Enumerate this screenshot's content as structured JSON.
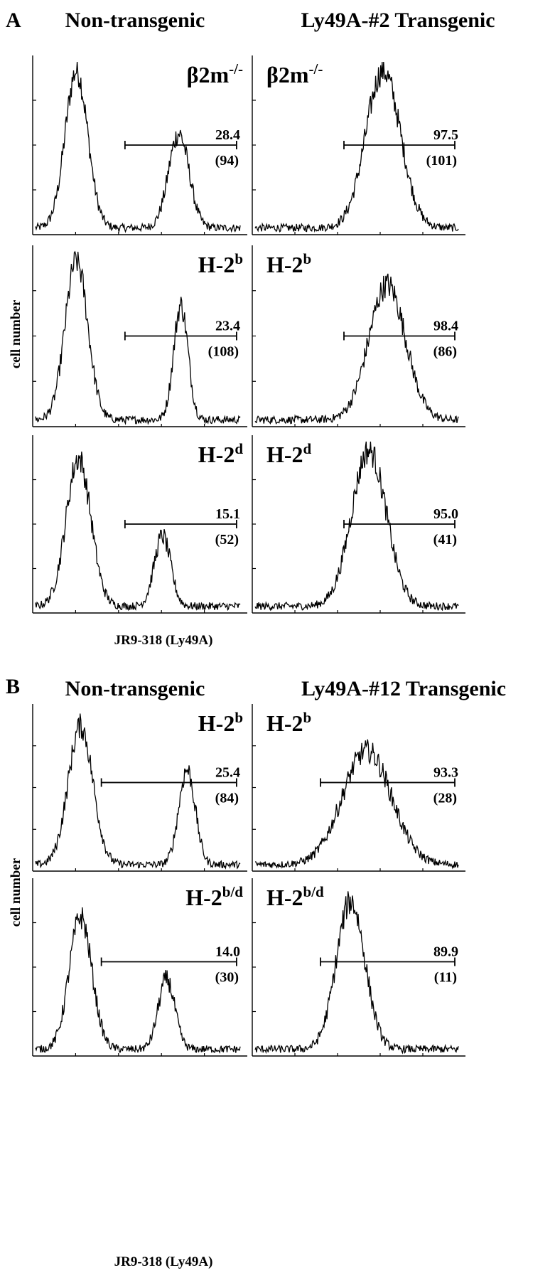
{
  "chart_data": {
    "type": "histogram",
    "ylabel": "cell number",
    "xlabel": "JR9-318 (Ly49A)",
    "panels": [
      {
        "letter": "A",
        "columns": [
          "Non-transgenic",
          "Ly49A-#2 Transgenic"
        ],
        "rows": [
          {
            "genotype_base": "β2m",
            "genotype_sup": "-/-",
            "plots": [
              {
                "percent": "28.4",
                "mfi": "(94)",
                "gate": [
                  0.43,
                  0.95
                ],
                "peaks": [
                  {
                    "center": 0.2,
                    "width": 0.055,
                    "height": 1.0
                  },
                  {
                    "center": 0.7,
                    "width": 0.05,
                    "height": 0.6
                  }
                ]
              },
              {
                "percent": "97.5",
                "mfi": "(101)",
                "gate": [
                  0.43,
                  0.95
                ],
                "peaks": [
                  {
                    "center": 0.63,
                    "width": 0.085,
                    "height": 1.0
                  }
                ]
              }
            ]
          },
          {
            "genotype_base": "H-2",
            "genotype_sup": "b",
            "plots": [
              {
                "percent": "23.4",
                "mfi": "(108)",
                "gate": [
                  0.43,
                  0.95
                ],
                "peaks": [
                  {
                    "center": 0.2,
                    "width": 0.055,
                    "height": 1.0
                  },
                  {
                    "center": 0.71,
                    "width": 0.035,
                    "height": 0.72
                  }
                ]
              },
              {
                "percent": "98.4",
                "mfi": "(86)",
                "gate": [
                  0.43,
                  0.95
                ],
                "peaks": [
                  {
                    "center": 0.65,
                    "width": 0.09,
                    "height": 0.85
                  }
                ]
              }
            ]
          },
          {
            "genotype_base": "H-2",
            "genotype_sup": "d",
            "plots": [
              {
                "percent": "15.1",
                "mfi": "(52)",
                "gate": [
                  0.43,
                  0.95
                ],
                "peaks": [
                  {
                    "center": 0.21,
                    "width": 0.06,
                    "height": 0.95
                  },
                  {
                    "center": 0.62,
                    "width": 0.04,
                    "height": 0.45
                  }
                ]
              },
              {
                "percent": "95.0",
                "mfi": "(41)",
                "gate": [
                  0.43,
                  0.95
                ],
                "peaks": [
                  {
                    "center": 0.56,
                    "width": 0.085,
                    "height": 1.0
                  }
                ]
              }
            ]
          }
        ]
      },
      {
        "letter": "B",
        "columns": [
          "Non-transgenic",
          "Ly49A-#12 Transgenic"
        ],
        "rows": [
          {
            "genotype_base": "H-2",
            "genotype_sup": "b",
            "plots": [
              {
                "percent": "25.4",
                "mfi": "(84)",
                "gate": [
                  0.32,
                  0.95
                ],
                "peaks": [
                  {
                    "center": 0.22,
                    "width": 0.06,
                    "height": 0.95
                  },
                  {
                    "center": 0.74,
                    "width": 0.04,
                    "height": 0.65
                  }
                ]
              },
              {
                "percent": "93.3",
                "mfi": "(28)",
                "gate": [
                  0.32,
                  0.95
                ],
                "peaks": [
                  {
                    "center": 0.55,
                    "width": 0.12,
                    "height": 0.78
                  }
                ]
              }
            ]
          },
          {
            "genotype_base": "H-2",
            "genotype_sup": "b/d",
            "plots": [
              {
                "percent": "14.0",
                "mfi": "(30)",
                "gate": [
                  0.32,
                  0.95
                ],
                "peaks": [
                  {
                    "center": 0.22,
                    "width": 0.055,
                    "height": 0.85
                  },
                  {
                    "center": 0.64,
                    "width": 0.04,
                    "height": 0.45
                  }
                ]
              },
              {
                "percent": "89.9",
                "mfi": "(11)",
                "gate": [
                  0.32,
                  0.95
                ],
                "peaks": [
                  {
                    "center": 0.47,
                    "width": 0.07,
                    "height": 0.95
                  }
                ]
              }
            ]
          }
        ]
      }
    ]
  }
}
